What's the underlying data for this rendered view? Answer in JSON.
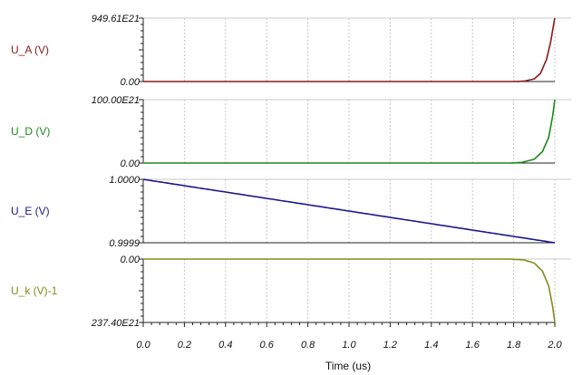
{
  "chart_data": {
    "type": "line",
    "xlabel": "Time (us)",
    "x_ticks": [
      "0.0",
      "0.2",
      "0.4",
      "0.6",
      "0.8",
      "1.0",
      "1.2",
      "1.4",
      "1.6",
      "1.8",
      "2.0"
    ],
    "xlim": [
      0,
      2.0
    ],
    "grid": true,
    "panels": [
      {
        "name": "U_A (V)",
        "color": "#8b1a1a",
        "y_top_label": "949.61E21",
        "y_bottom_label": "0.00",
        "ylim": [
          0,
          9.4961e+23
        ],
        "shape": "exp_rise",
        "x": [
          0.0,
          1.8,
          1.85,
          1.9,
          1.93,
          1.96,
          1.98,
          2.0
        ],
        "y": [
          0,
          0,
          5e+21,
          4e+22,
          1.2e+23,
          3.3e+23,
          6e+23,
          9.4961e+23
        ]
      },
      {
        "name": "U_D (V)",
        "color": "#1a8a1a",
        "y_top_label": "100.00E21",
        "y_bottom_label": "0.00",
        "ylim": [
          0,
          1e+23
        ],
        "shape": "exp_rise",
        "x": [
          0.0,
          1.78,
          1.84,
          1.9,
          1.94,
          1.97,
          1.99,
          2.0
        ],
        "y": [
          0,
          0,
          1e+21,
          6e+21,
          1.8e+22,
          4e+22,
          7.5e+22,
          1e+23
        ]
      },
      {
        "name": "U_E (V)",
        "color": "#1a1a8c",
        "y_top_label": "1.0000",
        "y_bottom_label": "0.9999",
        "ylim": [
          0.9999,
          1.0
        ],
        "shape": "linear",
        "x": [
          0.0,
          2.0
        ],
        "y": [
          1.0,
          0.9999
        ]
      },
      {
        "name": "U_k (V)-1",
        "color": "#8a8a1a",
        "y_top_label": "0.00",
        "y_bottom_label": "237.40E21",
        "ylim": [
          -2.374e+23,
          0
        ],
        "shape": "exp_fall",
        "x": [
          0.0,
          1.78,
          1.85,
          1.9,
          1.94,
          1.97,
          1.99,
          2.0
        ],
        "y": [
          0,
          0,
          -3e+21,
          -1.5e+22,
          -4.5e+22,
          -1e+23,
          -1.8e+23,
          -2.374e+23
        ]
      }
    ]
  }
}
